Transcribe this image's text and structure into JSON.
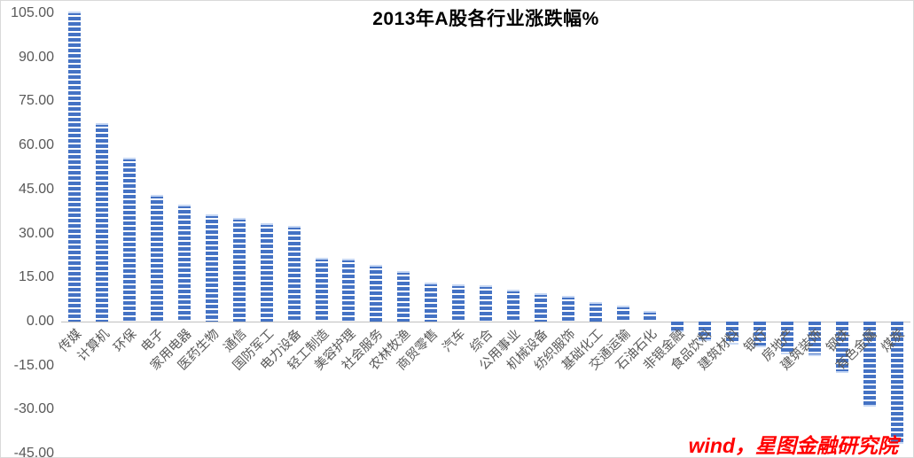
{
  "title": "2013年A股各行业涨跌幅%",
  "watermark": "wind，星图金融研究院",
  "colors": {
    "bar": "#4472c4",
    "bar_cap": "#c7d8f4",
    "axis_line": "#bfbfbf",
    "tick_text": "#595959",
    "title_text": "#000000",
    "watermark_text": "#ff0000",
    "frame_border": "#d9d9d9"
  },
  "chart_data": {
    "type": "bar",
    "title": "2013年A股各行业涨跌幅%",
    "xlabel": "",
    "ylabel": "",
    "categories": [
      "传媒",
      "计算机",
      "环保",
      "电子",
      "家用电器",
      "医药生物",
      "通信",
      "国防军工",
      "电力设备",
      "轻工制造",
      "美容护理",
      "社会服务",
      "农林牧渔",
      "商贸零售",
      "汽车",
      "综合",
      "公用事业",
      "机械设备",
      "纺织服饰",
      "基础化工",
      "交通运输",
      "石油石化",
      "非银金融",
      "食品饮料",
      "建筑材料",
      "银行",
      "房地产",
      "建筑装饰",
      "钢铁",
      "有色金属",
      "煤炭"
    ],
    "values": [
      105.5,
      67.6,
      55.9,
      43.2,
      39.8,
      36.6,
      35.2,
      33.5,
      32.6,
      21.8,
      21.5,
      19.4,
      17.3,
      13.3,
      12.8,
      12.5,
      10.9,
      9.7,
      8.7,
      6.6,
      5.4,
      3.6,
      -3.5,
      -6.6,
      -7.8,
      -8.8,
      -11.3,
      -11.7,
      -17.5,
      -29.0,
      -41.5
    ],
    "y_ticks": [
      105,
      90,
      75,
      60,
      45,
      30,
      15,
      0,
      -15,
      -30,
      -45
    ],
    "y_tick_labels": [
      "105.00",
      "90.00",
      "75.00",
      "60.00",
      "45.00",
      "30.00",
      "15.00",
      "0.00",
      "-15.00",
      "-30.00",
      "-45.00"
    ],
    "ylim": [
      -45,
      105
    ],
    "grid": false,
    "legend_position": "none",
    "bar_fill_style": "horizontal-stripes",
    "category_label_rotation_deg": 45
  }
}
